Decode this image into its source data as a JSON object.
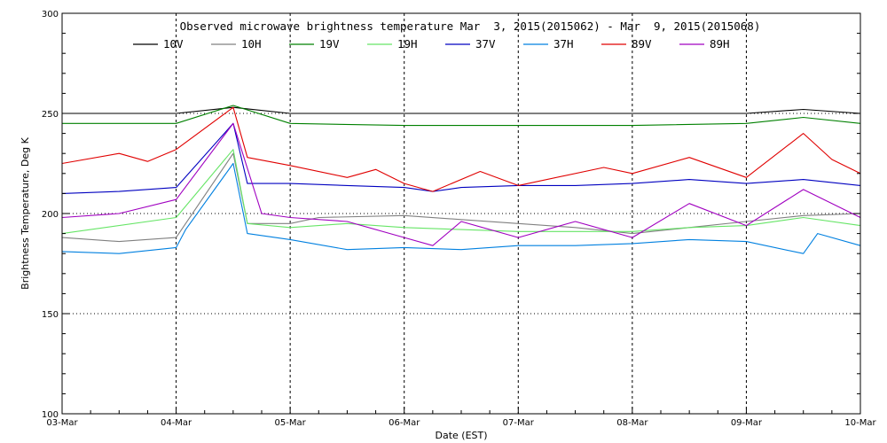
{
  "chart_data": {
    "type": "line",
    "title": "Observed microwave brightness temperature Mar  3, 2015(2015062) - Mar  9, 2015(2015068)",
    "xlabel": "Date (EST)",
    "ylabel": "Brightness Temperature, Deg K",
    "ylim": [
      100,
      300
    ],
    "yticks": [
      100,
      150,
      200,
      250,
      300
    ],
    "xlim": [
      "2015-03-03",
      "2015-03-10"
    ],
    "xticks": [
      "03-Mar",
      "04-Mar",
      "05-Mar",
      "06-Mar",
      "07-Mar",
      "08-Mar",
      "09-Mar",
      "10-Mar"
    ],
    "grid": true,
    "legend_position": "top",
    "series": [
      {
        "name": "10V",
        "color": "#000000",
        "points": [
          [
            "2015-03-03",
            250
          ],
          [
            "2015-03-04",
            250
          ],
          [
            "2015-03-04T12:00",
            253
          ],
          [
            "2015-03-05",
            250
          ],
          [
            "2015-03-06",
            250
          ],
          [
            "2015-03-07",
            250
          ],
          [
            "2015-03-08",
            250
          ],
          [
            "2015-03-09",
            250
          ],
          [
            "2015-03-09T12:00",
            252
          ],
          [
            "2015-03-10",
            250
          ]
        ]
      },
      {
        "name": "10H",
        "color": "#808080",
        "points": [
          [
            "2015-03-03",
            188
          ],
          [
            "2015-03-03T12:00",
            186
          ],
          [
            "2015-03-04",
            188
          ],
          [
            "2015-03-04T12:00",
            230
          ],
          [
            "2015-03-04T15:00",
            195
          ],
          [
            "2015-03-05",
            195
          ],
          [
            "2015-03-05T06:00",
            198
          ],
          [
            "2015-03-06",
            199
          ],
          [
            "2015-03-06T12:00",
            197
          ],
          [
            "2015-03-07",
            195
          ],
          [
            "2015-03-07T12:00",
            193
          ],
          [
            "2015-03-08",
            190
          ],
          [
            "2015-03-08T12:00",
            193
          ],
          [
            "2015-03-09",
            196
          ],
          [
            "2015-03-09T12:00",
            199
          ],
          [
            "2015-03-10",
            200
          ]
        ]
      },
      {
        "name": "19V",
        "color": "#008000",
        "points": [
          [
            "2015-03-03",
            245
          ],
          [
            "2015-03-04",
            245
          ],
          [
            "2015-03-04T12:00",
            254
          ],
          [
            "2015-03-05",
            245
          ],
          [
            "2015-03-06",
            244
          ],
          [
            "2015-03-07",
            244
          ],
          [
            "2015-03-08",
            244
          ],
          [
            "2015-03-09",
            245
          ],
          [
            "2015-03-09T12:00",
            248
          ],
          [
            "2015-03-10",
            245
          ]
        ]
      },
      {
        "name": "19H",
        "color": "#66e566",
        "points": [
          [
            "2015-03-03",
            190
          ],
          [
            "2015-03-04",
            198
          ],
          [
            "2015-03-04T12:00",
            232
          ],
          [
            "2015-03-04T15:00",
            195
          ],
          [
            "2015-03-05",
            193
          ],
          [
            "2015-03-05T12:00",
            195
          ],
          [
            "2015-03-06",
            193
          ],
          [
            "2015-03-06T12:00",
            192
          ],
          [
            "2015-03-07",
            191
          ],
          [
            "2015-03-07T12:00",
            191
          ],
          [
            "2015-03-08",
            191
          ],
          [
            "2015-03-08T12:00",
            193
          ],
          [
            "2015-03-09",
            194
          ],
          [
            "2015-03-09T12:00",
            198
          ],
          [
            "2015-03-10",
            194
          ]
        ]
      },
      {
        "name": "37V",
        "color": "#0000c0",
        "points": [
          [
            "2015-03-03",
            210
          ],
          [
            "2015-03-03T12:00",
            211
          ],
          [
            "2015-03-04",
            213
          ],
          [
            "2015-03-04T12:00",
            245
          ],
          [
            "2015-03-04T15:00",
            215
          ],
          [
            "2015-03-05",
            215
          ],
          [
            "2015-03-05T12:00",
            214
          ],
          [
            "2015-03-06",
            213
          ],
          [
            "2015-03-06T06:00",
            211
          ],
          [
            "2015-03-06T12:00",
            213
          ],
          [
            "2015-03-07",
            214
          ],
          [
            "2015-03-07T12:00",
            214
          ],
          [
            "2015-03-08",
            215
          ],
          [
            "2015-03-08T12:00",
            217
          ],
          [
            "2015-03-09",
            215
          ],
          [
            "2015-03-09T12:00",
            217
          ],
          [
            "2015-03-10",
            214
          ]
        ]
      },
      {
        "name": "37H",
        "color": "#0080e0",
        "points": [
          [
            "2015-03-03",
            181
          ],
          [
            "2015-03-03T12:00",
            180
          ],
          [
            "2015-03-04",
            183
          ],
          [
            "2015-03-04T02:00",
            192
          ],
          [
            "2015-03-04T12:00",
            225
          ],
          [
            "2015-03-04T15:00",
            190
          ],
          [
            "2015-03-05",
            187
          ],
          [
            "2015-03-05T12:00",
            182
          ],
          [
            "2015-03-06",
            183
          ],
          [
            "2015-03-06T12:00",
            182
          ],
          [
            "2015-03-07",
            184
          ],
          [
            "2015-03-07T12:00",
            184
          ],
          [
            "2015-03-08",
            185
          ],
          [
            "2015-03-08T12:00",
            187
          ],
          [
            "2015-03-09",
            186
          ],
          [
            "2015-03-09T12:00",
            180
          ],
          [
            "2015-03-09T15:00",
            190
          ],
          [
            "2015-03-10",
            184
          ]
        ]
      },
      {
        "name": "89V",
        "color": "#e00000",
        "points": [
          [
            "2015-03-03",
            225
          ],
          [
            "2015-03-03T12:00",
            230
          ],
          [
            "2015-03-03T18:00",
            226
          ],
          [
            "2015-03-04",
            232
          ],
          [
            "2015-03-04T12:00",
            253
          ],
          [
            "2015-03-04T15:00",
            228
          ],
          [
            "2015-03-05",
            224
          ],
          [
            "2015-03-05T12:00",
            218
          ],
          [
            "2015-03-05T18:00",
            222
          ],
          [
            "2015-03-06",
            215
          ],
          [
            "2015-03-06T06:00",
            211
          ],
          [
            "2015-03-06T16:00",
            221
          ],
          [
            "2015-03-07",
            214
          ],
          [
            "2015-03-07T18:00",
            223
          ],
          [
            "2015-03-08",
            220
          ],
          [
            "2015-03-08T12:00",
            228
          ],
          [
            "2015-03-09",
            218
          ],
          [
            "2015-03-09T12:00",
            240
          ],
          [
            "2015-03-09T18:00",
            227
          ],
          [
            "2015-03-10",
            220
          ]
        ]
      },
      {
        "name": "89H",
        "color": "#a000c0",
        "points": [
          [
            "2015-03-03",
            198
          ],
          [
            "2015-03-03T12:00",
            200
          ],
          [
            "2015-03-04",
            207
          ],
          [
            "2015-03-04T12:00",
            245
          ],
          [
            "2015-03-04T18:00",
            200
          ],
          [
            "2015-03-05",
            198
          ],
          [
            "2015-03-05T12:00",
            196
          ],
          [
            "2015-03-06",
            188
          ],
          [
            "2015-03-06T06:00",
            184
          ],
          [
            "2015-03-06T12:00",
            196
          ],
          [
            "2015-03-07",
            188
          ],
          [
            "2015-03-07T12:00",
            196
          ],
          [
            "2015-03-08",
            188
          ],
          [
            "2015-03-08T12:00",
            205
          ],
          [
            "2015-03-09",
            194
          ],
          [
            "2015-03-09T12:00",
            212
          ],
          [
            "2015-03-10",
            198
          ]
        ]
      }
    ]
  }
}
